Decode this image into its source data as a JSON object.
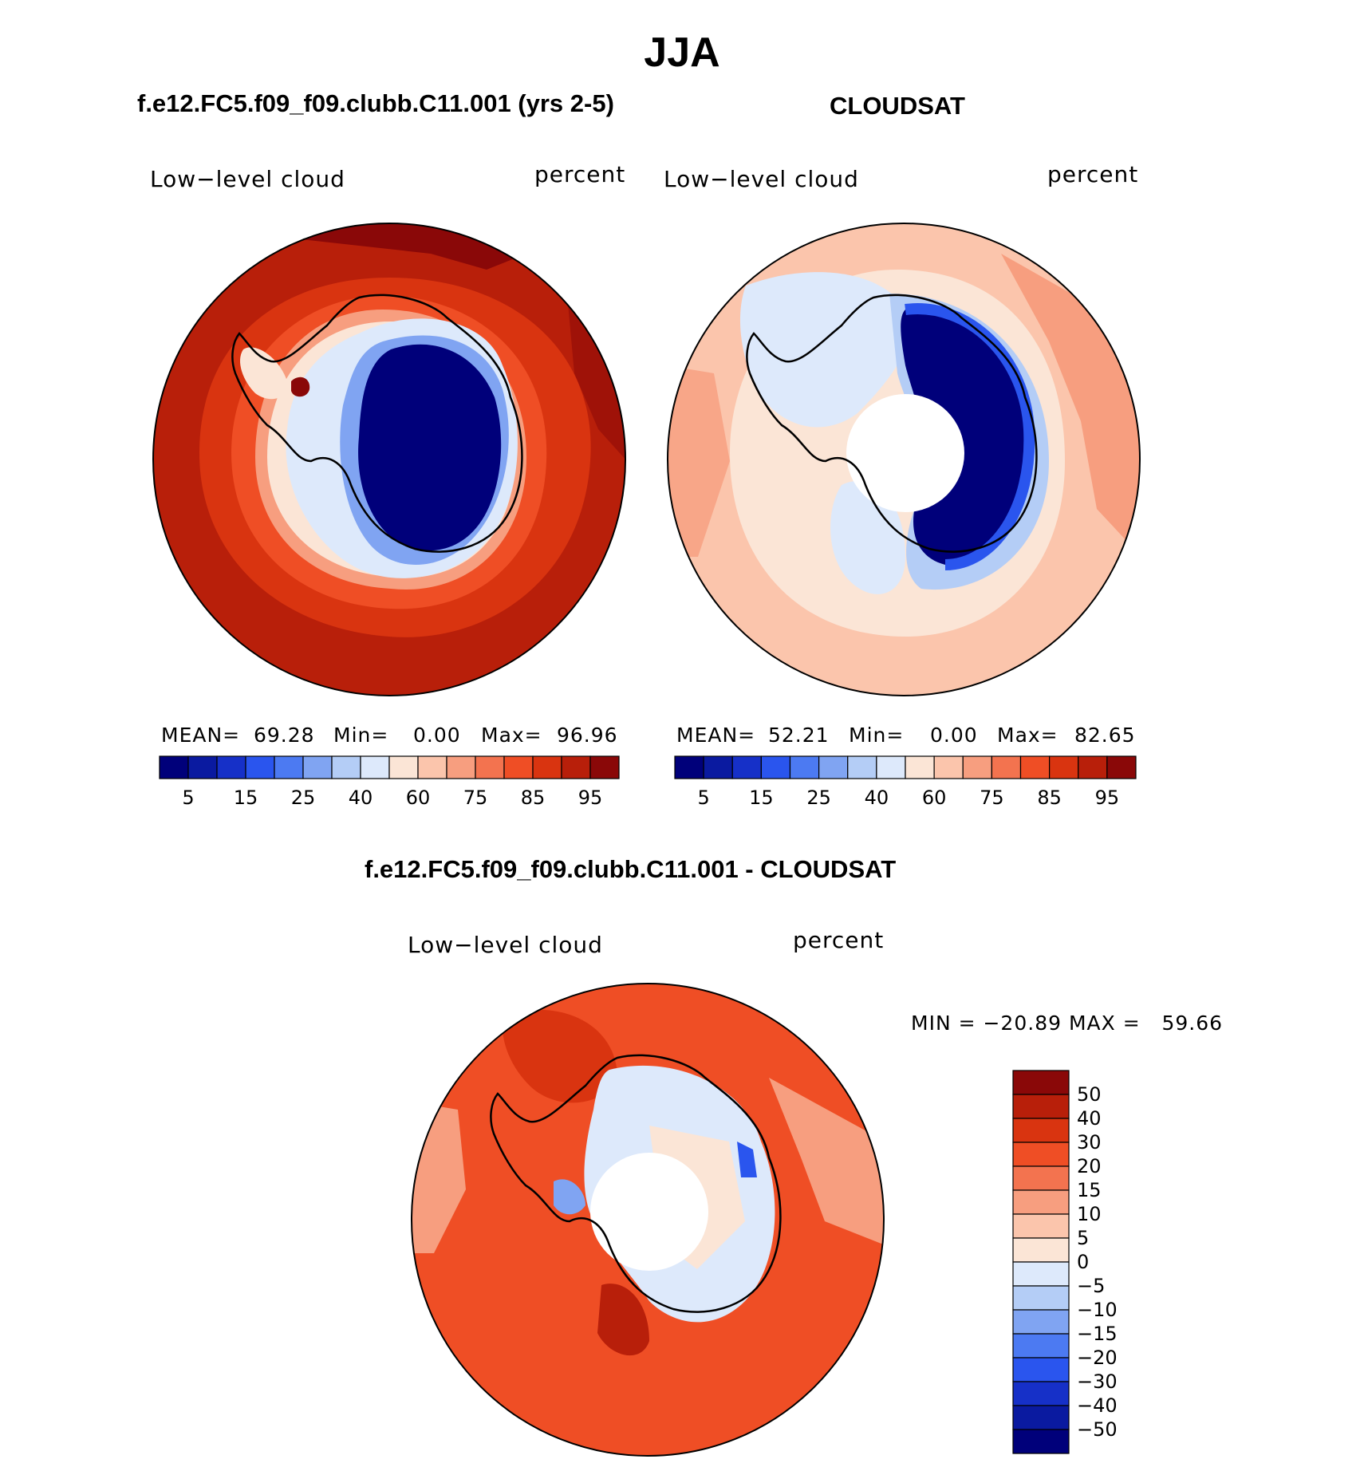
{
  "title": "JJA",
  "panels": {
    "model": {
      "subtitle": "f.e12.FC5.f09_f09.clubb.C11.001 (yrs 2-5)",
      "left_label": "Low−level cloud",
      "right_label": "percent",
      "stats": {
        "mean_label": "MEAN=",
        "mean": "69.28",
        "min_label": "Min=",
        "min": "0.00",
        "max_label": "Max=",
        "max": "96.96"
      }
    },
    "obs": {
      "subtitle": "CLOUDSAT",
      "left_label": "Low−level cloud",
      "right_label": "percent",
      "stats": {
        "mean_label": "MEAN=",
        "mean": "52.21",
        "min_label": "Min=",
        "min": "0.00",
        "max_label": "Max=",
        "max": "82.65"
      }
    },
    "diff": {
      "subtitle": "f.e12.FC5.f09_f09.clubb.C11.001 - CLOUDSAT",
      "left_label": "Low−level cloud",
      "right_label": "percent",
      "minmax": "MIN = −20.89 MAX =   59.66"
    }
  },
  "colorbar_main": {
    "colors": [
      "#00007a",
      "#0a1aa0",
      "#1630c8",
      "#2a55ee",
      "#4c7af2",
      "#80a4f2",
      "#b4cdf6",
      "#dde9fb",
      "#fbe5d6",
      "#fbc5ac",
      "#f79e7f",
      "#f3734f",
      "#ef4e25",
      "#d93410",
      "#b81f0a",
      "#8a0808"
    ],
    "tick_labels": [
      "5",
      "15",
      "25",
      "40",
      "60",
      "75",
      "85",
      "95"
    ]
  },
  "colorbar_diff": {
    "colors": [
      "#8a0808",
      "#b81f0a",
      "#d93410",
      "#ef4e25",
      "#f3734f",
      "#f79e7f",
      "#fbc5ac",
      "#fbe5d6",
      "#dde9fb",
      "#b4cdf6",
      "#80a4f2",
      "#4c7af2",
      "#2a55ee",
      "#1630c8",
      "#0a1aa0",
      "#00007a"
    ],
    "tick_labels": [
      "50",
      "40",
      "30",
      "20",
      "15",
      "10",
      "5",
      "0",
      "−5",
      "−10",
      "−15",
      "−20",
      "−30",
      "−40",
      "−50"
    ]
  },
  "map_colors": {
    "dark_red": "#8a0808",
    "red1": "#b81f0a",
    "red2": "#d93410",
    "red3": "#ef4e25",
    "red4": "#f3734f",
    "pink1": "#f79e7f",
    "pink2": "#fbc5ac",
    "cream": "#fbe5d6",
    "lblue": "#dde9fb",
    "lblue2": "#b4cdf6",
    "mblue": "#80a4f2",
    "blue": "#2a55ee",
    "navy": "#00007a"
  }
}
